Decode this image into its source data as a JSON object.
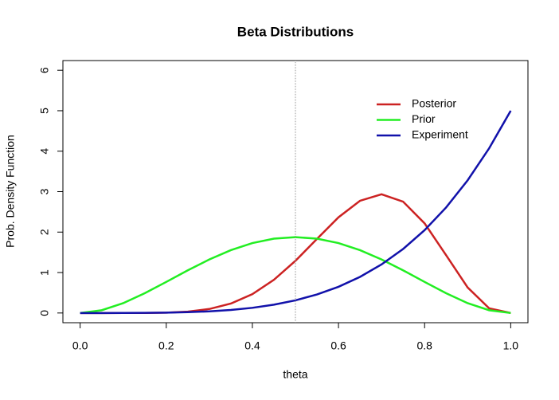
{
  "chart_data": {
    "type": "line",
    "title": "Beta Distributions",
    "x_label": "theta",
    "y_label": "Prob. Density Function",
    "x": [
      0,
      0.05,
      0.1,
      0.15,
      0.2,
      0.25,
      0.3,
      0.35,
      0.4,
      0.45,
      0.5,
      0.55,
      0.6,
      0.65,
      0.7,
      0.75,
      0.8,
      0.85,
      0.9,
      0.95,
      1
    ],
    "series": [
      {
        "name": "Posterior",
        "color": "#cc2222",
        "values": [
          0,
          0,
          0.0001,
          0.0014,
          0.009,
          0.034,
          0.099,
          0.233,
          0.467,
          0.821,
          1.289,
          1.831,
          2.365,
          2.774,
          2.935,
          2.753,
          2.215,
          1.428,
          0.631,
          0.115,
          0
        ]
      },
      {
        "name": "Prior",
        "color": "#22ee22",
        "values": [
          0,
          0.068,
          0.243,
          0.488,
          0.768,
          1.055,
          1.323,
          1.553,
          1.728,
          1.838,
          1.875,
          1.838,
          1.728,
          1.553,
          1.323,
          1.055,
          0.768,
          0.488,
          0.243,
          0.068,
          0
        ]
      },
      {
        "name": "Experiment",
        "color": "#1111aa",
        "values": [
          0,
          0,
          0.001,
          0.003,
          0.008,
          0.02,
          0.041,
          0.075,
          0.128,
          0.205,
          0.313,
          0.458,
          0.648,
          0.893,
          1.201,
          1.582,
          2.048,
          2.61,
          3.281,
          4.073,
          5
        ]
      }
    ],
    "vline": 0.5,
    "xlim": [
      -0.04,
      1.04
    ],
    "xticks": [
      {
        "value": 0,
        "label": "0.0"
      },
      0.2,
      0.4,
      0.6,
      0.8,
      {
        "value": 1,
        "label": "1.0"
      }
    ],
    "ylim": [
      -0.24,
      6.24
    ],
    "yticks": [
      0,
      1,
      2,
      3,
      4,
      5,
      6
    ],
    "legend": "top-right"
  }
}
